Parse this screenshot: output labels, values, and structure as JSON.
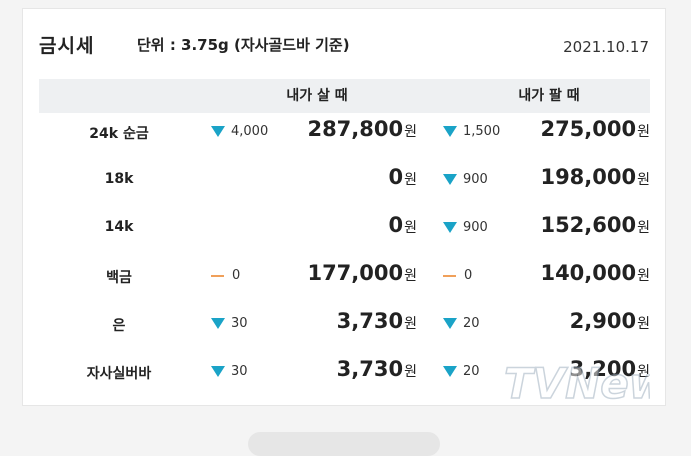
{
  "header": {
    "title": "금시세",
    "unit": "단위 : 3.75g (자사골드바 기준)",
    "date": "2021.10.17"
  },
  "columns": {
    "buy": "내가 살 때",
    "sell": "내가 팔 때"
  },
  "currency": "원",
  "rows": [
    {
      "name": "24k 순금",
      "buy_change": "4,000",
      "buy_trend": "down",
      "buy_price": "287,800",
      "sell_change": "1,500",
      "sell_trend": "down",
      "sell_price": "275,000"
    },
    {
      "name": "18k",
      "buy_change": "",
      "buy_trend": "none",
      "buy_price": "0",
      "sell_change": "900",
      "sell_trend": "down",
      "sell_price": "198,000"
    },
    {
      "name": "14k",
      "buy_change": "",
      "buy_trend": "none",
      "buy_price": "0",
      "sell_change": "900",
      "sell_trend": "down",
      "sell_price": "152,600"
    },
    {
      "name": "백금",
      "buy_change": "0",
      "buy_trend": "flat",
      "buy_price": "177,000",
      "sell_change": "0",
      "sell_trend": "flat",
      "sell_price": "140,000"
    },
    {
      "name": "은",
      "buy_change": "30",
      "buy_trend": "down",
      "buy_price": "3,730",
      "sell_change": "20",
      "sell_trend": "down",
      "sell_price": "2,900"
    },
    {
      "name": "자사실버바",
      "buy_change": "30",
      "buy_trend": "down",
      "buy_price": "3,730",
      "sell_change": "20",
      "sell_trend": "down",
      "sell_price": "3,200"
    }
  ],
  "watermark": {
    "text": "TVNews"
  },
  "colors": {
    "down": "#1aa3c7",
    "flat": "#f0a05a",
    "header_bg": "#eef0f2"
  }
}
